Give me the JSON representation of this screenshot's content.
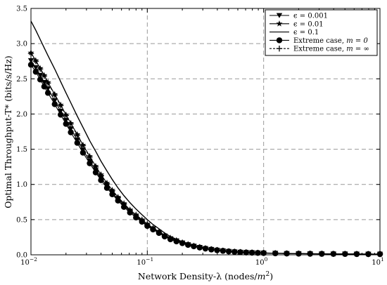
{
  "chart_data": {
    "type": "line",
    "xlabel": "Network Density-λ (nodes/m²)",
    "ylabel": "Optimal Throughput-T* (bits/s/Hz)",
    "x_scale": "log",
    "xlim": [
      0.01,
      10
    ],
    "ylim": [
      0,
      3.5
    ],
    "x_ticks": [
      {
        "value": 0.01,
        "base": "10",
        "exp": "−2"
      },
      {
        "value": 0.1,
        "base": "10",
        "exp": "−1"
      },
      {
        "value": 1,
        "base": "10",
        "exp": "0"
      },
      {
        "value": 10,
        "base": "10",
        "exp": "1"
      }
    ],
    "y_ticks": [
      "0.0",
      "0.5",
      "1.0",
      "1.5",
      "2.0",
      "2.5",
      "3.0",
      "3.5"
    ],
    "grid": true,
    "legend_position": "top-right",
    "x": [
      0.01,
      0.011,
      0.012,
      0.013,
      0.014,
      0.016,
      0.018,
      0.02,
      0.022,
      0.025,
      0.028,
      0.032,
      0.036,
      0.04,
      0.045,
      0.05,
      0.056,
      0.063,
      0.071,
      0.08,
      0.09,
      0.1,
      0.112,
      0.126,
      0.141,
      0.158,
      0.178,
      0.2,
      0.224,
      0.251,
      0.282,
      0.316,
      0.355,
      0.398,
      0.447,
      0.501,
      0.562,
      0.631,
      0.708,
      0.794,
      0.891,
      1,
      1.26,
      1.58,
      2,
      2.51,
      3.16,
      3.98,
      5.01,
      6.31,
      7.94,
      10
    ],
    "series": [
      {
        "name": "ϵ = 0.001",
        "marker": "triangle-down",
        "values": [
          2.76,
          2.66,
          2.55,
          2.45,
          2.36,
          2.19,
          2.04,
          1.91,
          1.79,
          1.63,
          1.49,
          1.33,
          1.2,
          1.09,
          0.98,
          0.88,
          0.79,
          0.7,
          0.62,
          0.55,
          0.48,
          0.42,
          0.37,
          0.32,
          0.27,
          0.23,
          0.2,
          0.17,
          0.145,
          0.124,
          0.106,
          0.09,
          0.077,
          0.066,
          0.057,
          0.049,
          0.043,
          0.038,
          0.034,
          0.031,
          0.028,
          0.026,
          0.022,
          0.019,
          0.017,
          0.015,
          0.014,
          0.013,
          0.012,
          0.011,
          0.01,
          0.01
        ]
      },
      {
        "name": "ϵ = 0.01",
        "marker": "star",
        "values": [
          2.87,
          2.76,
          2.65,
          2.55,
          2.45,
          2.28,
          2.13,
          1.99,
          1.87,
          1.71,
          1.56,
          1.4,
          1.26,
          1.14,
          1.02,
          0.92,
          0.82,
          0.73,
          0.64,
          0.57,
          0.5,
          0.44,
          0.38,
          0.33,
          0.28,
          0.24,
          0.205,
          0.175,
          0.15,
          0.128,
          0.109,
          0.093,
          0.079,
          0.068,
          0.058,
          0.05,
          0.044,
          0.039,
          0.035,
          0.031,
          0.028,
          0.026,
          0.022,
          0.019,
          0.017,
          0.015,
          0.014,
          0.013,
          0.012,
          0.011,
          0.01,
          0.01
        ]
      },
      {
        "name": "ϵ = 0.1",
        "marker": "none",
        "values": [
          3.32,
          3.19,
          3.06,
          2.94,
          2.83,
          2.64,
          2.46,
          2.3,
          2.16,
          1.97,
          1.81,
          1.62,
          1.47,
          1.33,
          1.19,
          1.07,
          0.95,
          0.84,
          0.74,
          0.65,
          0.57,
          0.5,
          0.43,
          0.37,
          0.31,
          0.26,
          0.22,
          0.185,
          0.155,
          0.13,
          0.11,
          0.093,
          0.078,
          0.066,
          0.057,
          0.049,
          0.043,
          0.038,
          0.034,
          0.031,
          0.028,
          0.026,
          0.022,
          0.019,
          0.017,
          0.015,
          0.014,
          0.013,
          0.012,
          0.011,
          0.01,
          0.01
        ]
      },
      {
        "name": "Extreme case, m = 0",
        "marker": "circle",
        "values": [
          2.7,
          2.6,
          2.49,
          2.39,
          2.3,
          2.14,
          1.99,
          1.86,
          1.74,
          1.59,
          1.45,
          1.3,
          1.17,
          1.06,
          0.95,
          0.86,
          0.77,
          0.68,
          0.6,
          0.53,
          0.47,
          0.41,
          0.36,
          0.31,
          0.26,
          0.22,
          0.19,
          0.165,
          0.14,
          0.12,
          0.103,
          0.088,
          0.075,
          0.065,
          0.056,
          0.048,
          0.042,
          0.037,
          0.033,
          0.03,
          0.027,
          0.025,
          0.021,
          0.018,
          0.016,
          0.015,
          0.014,
          0.013,
          0.012,
          0.011,
          0.01,
          0.01
        ]
      },
      {
        "name": "Extreme case, m = ∞",
        "marker": "plus",
        "values": [
          2.86,
          2.75,
          2.64,
          2.54,
          2.44,
          2.27,
          2.12,
          1.98,
          1.86,
          1.7,
          1.55,
          1.39,
          1.25,
          1.13,
          1.01,
          0.91,
          0.81,
          0.72,
          0.63,
          0.56,
          0.49,
          0.43,
          0.37,
          0.32,
          0.27,
          0.23,
          0.2,
          0.17,
          0.145,
          0.124,
          0.106,
          0.09,
          0.077,
          0.066,
          0.057,
          0.049,
          0.043,
          0.038,
          0.034,
          0.031,
          0.028,
          0.026,
          0.022,
          0.019,
          0.017,
          0.015,
          0.014,
          0.013,
          0.012,
          0.011,
          0.01,
          0.01
        ]
      }
    ]
  },
  "legend": [
    {
      "pre": "ϵ = 0.001",
      "italic": ""
    },
    {
      "pre": "ϵ = 0.01",
      "italic": ""
    },
    {
      "pre": "ϵ = 0.1",
      "italic": ""
    },
    {
      "pre": "Extreme case, ",
      "italic": "m = 0"
    },
    {
      "pre": "Extreme case, ",
      "italic": "m = ∞"
    }
  ],
  "axis_text": {
    "xlabel_pre": "Network Density-λ (nodes/",
    "xlabel_italic": "m",
    "xlabel_sup": "2",
    "xlabel_post": ")",
    "ylabel": "Optimal Throughput-T* (bits/s/Hz)"
  }
}
